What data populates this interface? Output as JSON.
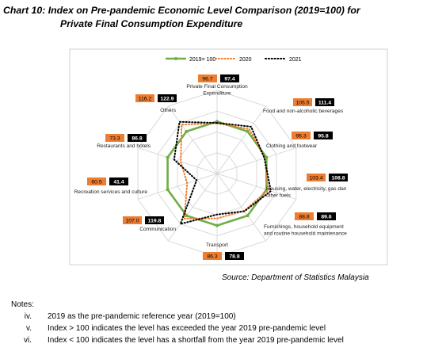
{
  "title": {
    "line1": "Chart 10: Index on Pre-pandemic Economic Level Comparison (2019=100) for",
    "line2": "Private Final Consumption Expenditure"
  },
  "chart_data": {
    "type": "radar",
    "grid": true,
    "legend_position": "top",
    "r_max": 160,
    "categories": [
      "Private Final Consumption Expenditure",
      "Food and non-alcoholic beverages",
      "Clothing and footwear",
      "Housing, water, electricity, gas dan other fuels",
      "Furnishings, household equipment and routine household maintenance",
      "Transport",
      "Communication",
      "Recreation services and culture",
      "Restaurants and hotels",
      "Others"
    ],
    "category_label_lines": [
      [
        "Private Final Consumption",
        "Expenditure"
      ],
      [
        "Food and non-alcoholic beverages"
      ],
      [
        "Clothing and footwear"
      ],
      [
        "Housing, water, electricity, gas dan",
        "other fuels"
      ],
      [
        "Furnishings, household equipment",
        "and routine household maintenance"
      ],
      [
        "Transport"
      ],
      [
        "Communication"
      ],
      [
        "Recreation services and culture"
      ],
      [
        "Restaurants and hotels"
      ],
      [
        "Others"
      ]
    ],
    "series": [
      {
        "name": "2019= 100",
        "color": "#70ad47",
        "style": "solid",
        "values": [
          100,
          100,
          100,
          100,
          100,
          100,
          100,
          100,
          100,
          100
        ]
      },
      {
        "name": "2020",
        "color": "#ed7d31",
        "style": "dotted",
        "values": [
          96.7,
          105.5,
          96.3,
          103.4,
          88.8,
          86.3,
          107.0,
          60.5,
          73.3,
          116.2
        ],
        "labels": [
          "96.7",
          "105.5",
          "96.3",
          "103.4",
          "88.8",
          "86.3",
          "107.0",
          "60.5",
          "73.3",
          "116.2"
        ]
      },
      {
        "name": "2021",
        "color": "#000000",
        "style": "dotted",
        "values": [
          97.4,
          111.4,
          95.8,
          108.8,
          89.6,
          78.8,
          119.8,
          41.4,
          86.8,
          122.9
        ],
        "labels": [
          "97.4",
          "111.4",
          "95.8",
          "108.8",
          "89.6",
          "78.8",
          "119.8",
          "41.4",
          "86.8",
          "122.9"
        ]
      }
    ]
  },
  "source": "Source: Department of Statistics Malaysia",
  "notes": {
    "heading": "Notes:",
    "items": [
      {
        "num": "iv.",
        "text": "2019 as the pre-pandemic reference year (2019=100)"
      },
      {
        "num": "v.",
        "text": "Index > 100 indicates the level has exceeded the year 2019 pre-pandemic level"
      },
      {
        "num": "vi.",
        "text": "Index < 100 indicates the level has a shortfall from the year 2019 pre-pandemic level"
      }
    ]
  }
}
